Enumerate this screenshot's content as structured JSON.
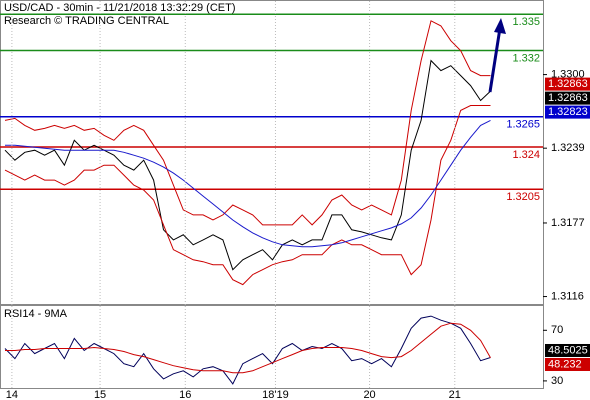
{
  "chart_data": [
    {
      "type": "line",
      "title": "USD/CAD - 30min - 11/21/2018 13:32:29 (CET)",
      "subtitle": "Research © TRADING CENTRAL",
      "x": [
        0,
        1,
        2,
        3,
        4,
        5,
        6,
        7,
        8,
        9,
        10,
        11,
        12,
        13,
        14,
        15,
        16,
        17,
        18,
        19,
        20,
        21,
        22,
        23,
        24,
        25,
        26,
        27,
        28,
        29,
        30,
        31,
        32,
        33,
        34,
        35,
        36,
        37,
        38,
        39,
        40,
        41,
        42,
        43,
        44,
        45,
        46,
        47,
        48,
        49
      ],
      "xlim": [
        -0.5,
        54
      ],
      "ylim": [
        1.3109,
        1.3361
      ],
      "yticks": [
        {
          "value": 1.33,
          "label": "1.3300"
        },
        1.3239,
        1.3177,
        1.3116
      ],
      "series": [
        {
          "color": "#000000",
          "values": [
            1.32373,
            1.3229,
            1.32356,
            1.32373,
            1.32332,
            1.32373,
            1.32249,
            1.32455,
            1.32373,
            1.32414,
            1.32373,
            1.32332,
            1.32249,
            1.32208,
            1.3229,
            1.32125,
            1.31713,
            1.3163,
            1.31672,
            1.31589,
            1.3163,
            1.31672,
            1.3163,
            1.31383,
            1.31465,
            1.31507,
            1.31548,
            1.31465,
            1.31589,
            1.3163,
            1.31589,
            1.3163,
            1.3163,
            1.31837,
            1.31837,
            1.31713,
            1.31696,
            1.31672,
            1.31647,
            1.3163,
            1.31837,
            1.32373,
            1.3262,
            1.33116,
            1.33033,
            1.33074,
            1.32992,
            1.32909,
            1.32785,
            1.32863
          ]
        },
        {
          "color": "#cc0000",
          "values": [
            1.3262,
            1.32637,
            1.32579,
            1.32538,
            1.32554,
            1.32579,
            1.32554,
            1.32579,
            1.32538,
            1.32554,
            1.32497,
            1.32455,
            1.32538,
            1.32579,
            1.32538,
            1.32414,
            1.3229,
            1.32084,
            1.31878,
            1.31837,
            1.31837,
            1.31795,
            1.31837,
            1.31919,
            1.31878,
            1.31837,
            1.31754,
            1.31754,
            1.31754,
            1.31754,
            1.31837,
            1.31754,
            1.31837,
            1.3196,
            1.32002,
            1.31919,
            1.31878,
            1.31919,
            1.31878,
            1.31837,
            1.32125,
            1.32703,
            1.33116,
            1.33446,
            1.33404,
            1.33281,
            1.33198,
            1.33033,
            1.32992,
            1.32992
          ]
        },
        {
          "color": "#cc0000",
          "values": [
            1.32208,
            1.32167,
            1.32125,
            1.32167,
            1.32125,
            1.32125,
            1.32084,
            1.32125,
            1.32208,
            1.32208,
            1.32249,
            1.32249,
            1.32167,
            1.32084,
            1.32043,
            1.3196,
            1.31754,
            1.31548,
            1.31507,
            1.31465,
            1.31449,
            1.31424,
            1.31424,
            1.313,
            1.31259,
            1.31342,
            1.31383,
            1.31424,
            1.31449,
            1.31465,
            1.31507,
            1.31507,
            1.31507,
            1.31589,
            1.3163,
            1.31589,
            1.31589,
            1.31548,
            1.31507,
            1.31507,
            1.31507,
            1.31342,
            1.31424,
            1.31795,
            1.3229,
            1.32455,
            1.32703,
            1.32744,
            1.32744,
            1.32744
          ]
        },
        {
          "color": "#1a1acc",
          "values": [
            1.32414,
            1.32414,
            1.32406,
            1.32398,
            1.32389,
            1.32381,
            1.32373,
            1.32373,
            1.32373,
            1.32373,
            1.32373,
            1.32373,
            1.32356,
            1.32332,
            1.32307,
            1.32274,
            1.32233,
            1.32183,
            1.32125,
            1.32059,
            1.31993,
            1.31927,
            1.31861,
            1.31795,
            1.31738,
            1.31688,
            1.31647,
            1.31614,
            1.31589,
            1.31581,
            1.31573,
            1.31573,
            1.31581,
            1.31589,
            1.31606,
            1.3163,
            1.31655,
            1.3168,
            1.31705,
            1.31729,
            1.31762,
            1.31812,
            1.31894,
            1.32002,
            1.32125,
            1.32249,
            1.32373,
            1.3248,
            1.32579,
            1.3262
          ]
        }
      ],
      "levels": [
        {
          "value": 1.335,
          "color": "#1a8c1a"
        },
        {
          "value": 1.332,
          "color": "#1a8c1a"
        },
        {
          "value": 1.3265,
          "color": "#0000cc"
        },
        {
          "value": 1.324,
          "color": "#cc0000"
        },
        {
          "value": 1.3205,
          "color": "#cc0000"
        }
      ],
      "markers": [
        {
          "value": 1.32863,
          "color": "#cc0000"
        },
        {
          "value": 1.32863,
          "color": "#000000"
        },
        {
          "value": 1.32823,
          "color": "#0000cc"
        }
      ]
    },
    {
      "type": "line",
      "title": "RSI14 - 9MA",
      "x": [
        0,
        1,
        2,
        3,
        4,
        5,
        6,
        7,
        8,
        9,
        10,
        11,
        12,
        13,
        14,
        15,
        16,
        17,
        18,
        19,
        20,
        21,
        22,
        23,
        24,
        25,
        26,
        27,
        28,
        29,
        30,
        31,
        32,
        33,
        34,
        35,
        36,
        37,
        38,
        39,
        40,
        41,
        42,
        43,
        44,
        45,
        46,
        47,
        48,
        49
      ],
      "xlim": [
        -0.5,
        54
      ],
      "xticks": [
        {
          "value": 0.7,
          "label": "14"
        },
        {
          "value": 9.6,
          "label": "15"
        },
        {
          "value": 18.2,
          "label": "16"
        },
        {
          "value": 27.3,
          "label": "18'19"
        },
        {
          "value": 36.8,
          "label": "20"
        },
        {
          "value": 45.4,
          "label": "21"
        }
      ],
      "ylim": [
        23.6,
        89.2
      ],
      "yticks": [
        70,
        30
      ],
      "series": [
        {
          "color": "#00005a",
          "values": [
            55.6,
            47.6,
            59.6,
            51.6,
            55.6,
            59.6,
            47.6,
            63.6,
            54,
            59.6,
            55.6,
            51.6,
            43.6,
            41.2,
            51.6,
            39.6,
            31.6,
            35.6,
            38,
            33.2,
            39.6,
            41.2,
            38,
            27.6,
            43.6,
            47.6,
            51.6,
            43.6,
            55.6,
            59.6,
            54,
            57.2,
            55.6,
            59.6,
            55.6,
            46,
            47.6,
            43.6,
            47.6,
            41.2,
            55.6,
            71.6,
            79.6,
            81.2,
            78,
            75.6,
            71.6,
            59.6,
            46,
            48.5025
          ]
        },
        {
          "color": "#cc0000",
          "values": [
            54,
            54,
            54.8,
            54.8,
            55.6,
            55.6,
            55.6,
            55.6,
            55.6,
            56.4,
            55.6,
            54.8,
            53.2,
            50.8,
            49.2,
            46.8,
            44.4,
            42,
            40.4,
            38.8,
            38,
            38,
            38,
            36.4,
            36.4,
            38,
            41.2,
            44.4,
            47.6,
            50.8,
            54,
            55.6,
            56.4,
            56.4,
            56.4,
            55.6,
            54,
            51.6,
            49.2,
            48.4,
            49.2,
            54,
            60.4,
            66.8,
            73.2,
            75.6,
            74.8,
            70,
            62,
            48.232
          ]
        }
      ],
      "markers": [
        {
          "value": 48.5025,
          "color": "#000000"
        },
        {
          "value": 48.232,
          "color": "#cc0000"
        }
      ]
    }
  ]
}
